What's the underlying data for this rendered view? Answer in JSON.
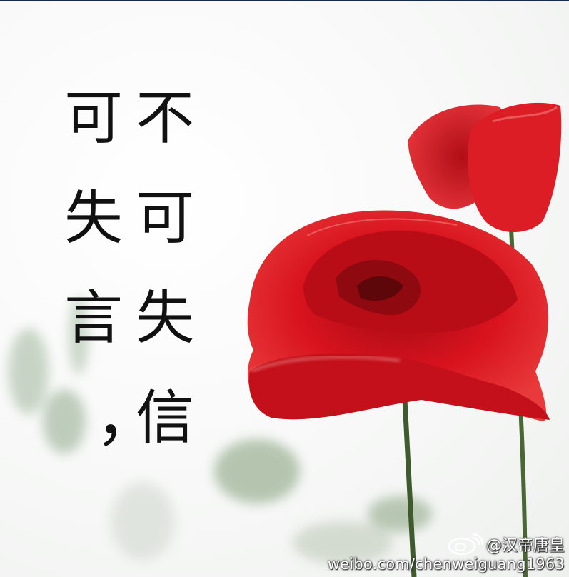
{
  "poem": {
    "right_column": [
      "不",
      "可",
      "失",
      "信"
    ],
    "left_column": [
      "可",
      "失",
      "言"
    ],
    "comma": "，"
  },
  "watermark": {
    "handle": "@汉帝唐皇",
    "url": "weibo.com/chenweiguang1963"
  },
  "colors": {
    "petal": "#d6101b",
    "petal_dark": "#8e0a10",
    "stem": "#3f5a2c",
    "text": "#111111"
  }
}
